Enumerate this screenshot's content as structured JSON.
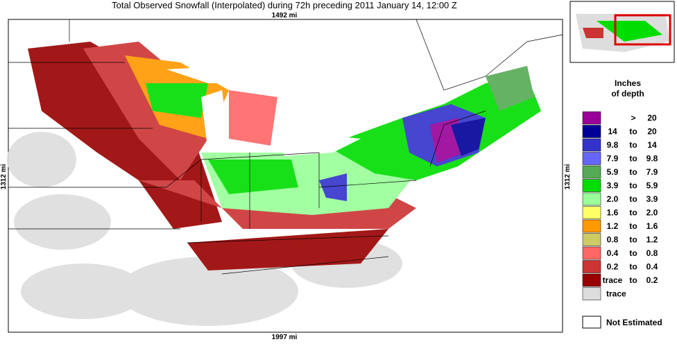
{
  "title": "Total Observed Snowfall (Interpolated) during 72h preceding 2011 January 14, 12:00 Z",
  "map": {
    "top_scale": "1492 mi",
    "bottom_scale": "1997 mi",
    "left_scale": "1312 mi",
    "right_scale": "1312 mi"
  },
  "legend": {
    "title": [
      "Inches",
      "of depth"
    ],
    "items": [
      {
        "parts": [
          ">",
          "20"
        ],
        "color": "#990099"
      },
      {
        "parts": [
          "14",
          "to",
          "20"
        ],
        "color": "#000099"
      },
      {
        "parts": [
          "9.8",
          "to",
          "14"
        ],
        "color": "#3333cc"
      },
      {
        "parts": [
          "7.9",
          "to",
          "9.8"
        ],
        "color": "#6666ff"
      },
      {
        "parts": [
          "5.9",
          "to",
          "7.9"
        ],
        "color": "#55aa55"
      },
      {
        "parts": [
          "3.9",
          "to",
          "5.9"
        ],
        "color": "#00dd00"
      },
      {
        "parts": [
          "2.0",
          "to",
          "3.9"
        ],
        "color": "#99ff99"
      },
      {
        "parts": [
          "1.6",
          "to",
          "2.0"
        ],
        "color": "#ffff66"
      },
      {
        "parts": [
          "1.2",
          "to",
          "1.6"
        ],
        "color": "#ff9900"
      },
      {
        "parts": [
          "0.8",
          "to",
          "1.2"
        ],
        "color": "#cccc66"
      },
      {
        "parts": [
          "0.4",
          "to",
          "0.8"
        ],
        "color": "#ff6666"
      },
      {
        "parts": [
          "0.2",
          "to",
          "0.4"
        ],
        "color": "#cc3333"
      },
      {
        "parts": [
          "trace",
          "to",
          "0.2"
        ],
        "color": "#990000"
      },
      {
        "parts": [
          "trace"
        ],
        "color": "#dddddd"
      }
    ],
    "not_estimated": "Not Estimated"
  }
}
